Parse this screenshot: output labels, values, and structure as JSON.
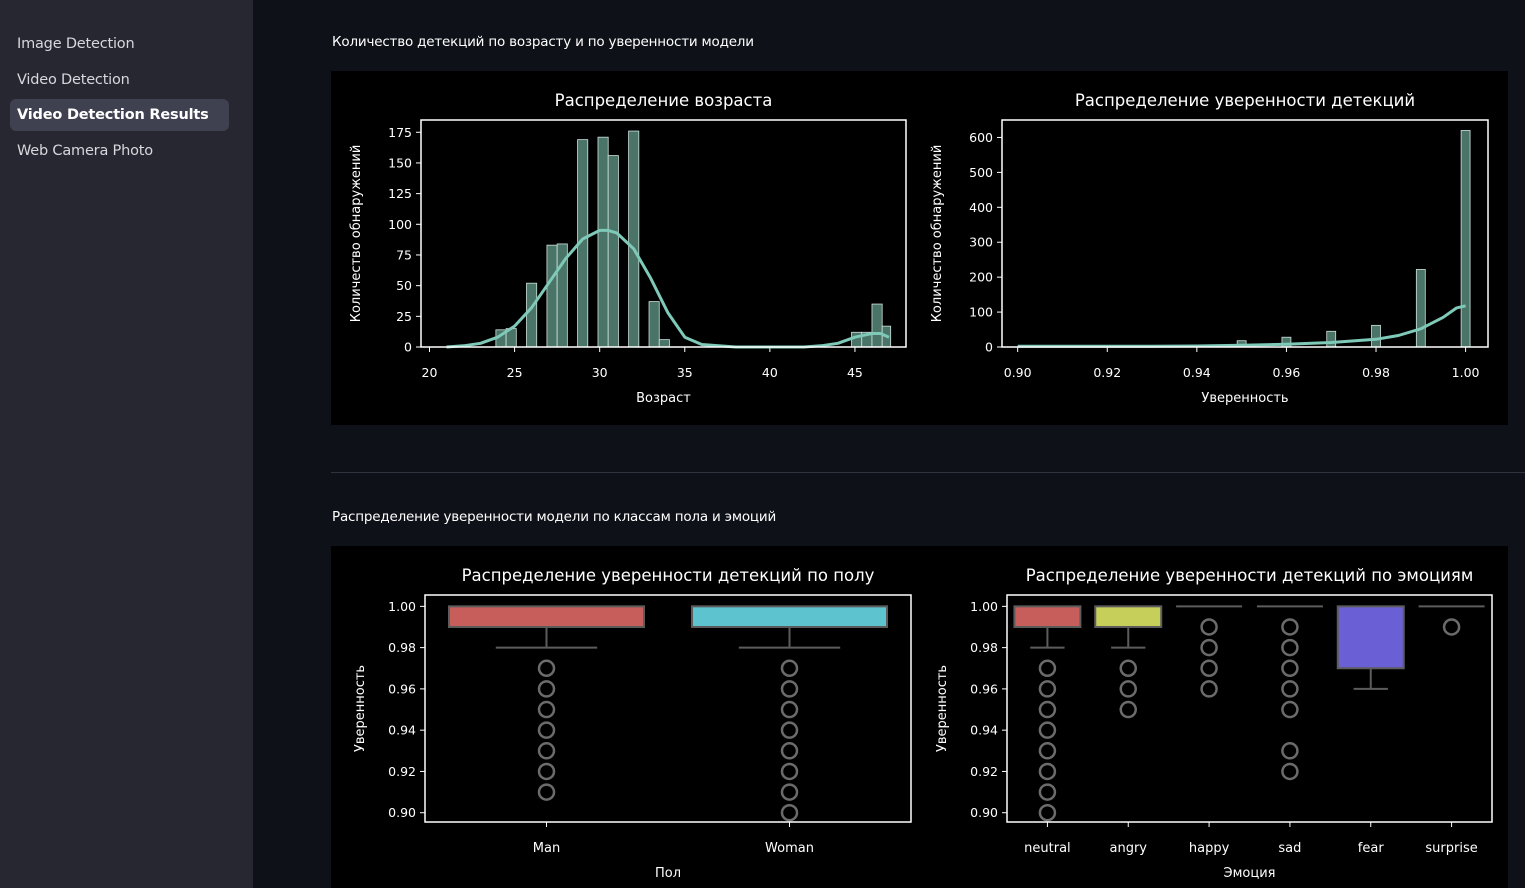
{
  "sidebar": {
    "items": [
      {
        "label": "Image Detection",
        "active": false
      },
      {
        "label": "Video Detection",
        "active": false
      },
      {
        "label": "Video Detection Results",
        "active": true
      },
      {
        "label": "Web Camera Photo",
        "active": false
      }
    ]
  },
  "sections": [
    {
      "title": "Количество детекций по возрасту и по уверенности модели"
    },
    {
      "title": "Распределение уверенности модели по классам пола и эмоций"
    }
  ],
  "colors": {
    "hist_bar": "#4a7468",
    "kde_line": "#7fc9b8",
    "box_man": "#c85e5b",
    "box_woman": "#5cc3cf",
    "box_neutral": "#c85e5b",
    "box_angry": "#c7cf5b",
    "box_fear": "#6b5fd5",
    "whisker": "#5c5c5c",
    "outlier": "#6b6b6b"
  },
  "chart_data": [
    {
      "type": "bar",
      "title": "Распределение возраста",
      "xlabel": "Возраст",
      "ylabel": "Количество обнаружений",
      "xlim": [
        19.5,
        48
      ],
      "ylim": [
        0,
        185
      ],
      "xticks": [
        20,
        25,
        30,
        35,
        40,
        45
      ],
      "yticks": [
        0,
        25,
        50,
        75,
        100,
        125,
        150,
        175
      ],
      "bins": [
        {
          "x0": 23.9,
          "x1": 24.5,
          "value": 14
        },
        {
          "x0": 24.5,
          "x1": 25.1,
          "value": 15
        },
        {
          "x0": 25.7,
          "x1": 26.3,
          "value": 52
        },
        {
          "x0": 26.9,
          "x1": 27.5,
          "value": 83
        },
        {
          "x0": 27.5,
          "x1": 28.1,
          "value": 84
        },
        {
          "x0": 28.7,
          "x1": 29.3,
          "value": 169
        },
        {
          "x0": 29.9,
          "x1": 30.5,
          "value": 171
        },
        {
          "x0": 30.5,
          "x1": 31.1,
          "value": 156
        },
        {
          "x0": 31.7,
          "x1": 32.3,
          "value": 176
        },
        {
          "x0": 32.9,
          "x1": 33.5,
          "value": 37
        },
        {
          "x0": 33.5,
          "x1": 34.1,
          "value": 6
        },
        {
          "x0": 44.8,
          "x1": 45.4,
          "value": 12
        },
        {
          "x0": 45.4,
          "x1": 46.0,
          "value": 12
        },
        {
          "x0": 46.0,
          "x1": 46.6,
          "value": 35
        },
        {
          "x0": 46.6,
          "x1": 47.1,
          "value": 17
        }
      ],
      "kde": {
        "x": [
          21,
          22,
          23,
          24,
          25,
          26,
          27,
          28,
          29,
          30,
          30.5,
          31,
          32,
          33,
          34,
          35,
          36,
          38,
          40,
          42,
          43,
          44,
          45,
          46,
          46.5,
          47
        ],
        "y": [
          0,
          1,
          3,
          8,
          17,
          32,
          52,
          72,
          88,
          95,
          95,
          93,
          80,
          56,
          28,
          8,
          2,
          0,
          0,
          0,
          1,
          3,
          8,
          11,
          11,
          8
        ]
      }
    },
    {
      "type": "bar",
      "title": "Распределение уверенности детекций",
      "xlabel": "Уверенность",
      "ylabel": "Количество обнаружений",
      "xlim": [
        0.8965,
        1.005
      ],
      "ylim": [
        0,
        650
      ],
      "xticks": [
        0.9,
        0.92,
        0.94,
        0.96,
        0.98,
        1.0
      ],
      "xtick_labels": [
        "0.90",
        "0.92",
        "0.94",
        "0.96",
        "0.98",
        "1.00"
      ],
      "yticks": [
        0,
        100,
        200,
        300,
        400,
        500,
        600
      ],
      "bins": [
        {
          "x0": 0.949,
          "x1": 0.951,
          "value": 18
        },
        {
          "x0": 0.959,
          "x1": 0.961,
          "value": 28
        },
        {
          "x0": 0.969,
          "x1": 0.971,
          "value": 45
        },
        {
          "x0": 0.979,
          "x1": 0.981,
          "value": 62
        },
        {
          "x0": 0.989,
          "x1": 0.991,
          "value": 222
        },
        {
          "x0": 0.999,
          "x1": 1.001,
          "value": 620
        }
      ],
      "kde": {
        "x": [
          0.9,
          0.91,
          0.92,
          0.93,
          0.94,
          0.95,
          0.96,
          0.97,
          0.98,
          0.985,
          0.99,
          0.995,
          0.998,
          1.0
        ],
        "y": [
          2,
          2,
          2,
          2,
          3,
          5,
          8,
          13,
          22,
          33,
          52,
          85,
          112,
          118
        ]
      }
    },
    {
      "type": "box",
      "title": "Распределение уверенности детекций по полу",
      "xlabel": "Пол",
      "ylabel": "Уверенность",
      "ylim": [
        0.8955,
        1.0055
      ],
      "yticks": [
        0.9,
        0.92,
        0.94,
        0.96,
        0.98,
        1.0
      ],
      "ytick_labels": [
        "0.90",
        "0.92",
        "0.94",
        "0.96",
        "0.98",
        "1.00"
      ],
      "categories": [
        "Man",
        "Woman"
      ],
      "boxes": [
        {
          "q1": 0.99,
          "median": 1.0,
          "q3": 1.0,
          "whisker_low": 0.98,
          "whisker_high": 1.0,
          "outliers": [
            0.97,
            0.96,
            0.95,
            0.94,
            0.93,
            0.92,
            0.91
          ]
        },
        {
          "q1": 0.99,
          "median": 1.0,
          "q3": 1.0,
          "whisker_low": 0.98,
          "whisker_high": 1.0,
          "outliers": [
            0.97,
            0.96,
            0.95,
            0.94,
            0.93,
            0.92,
            0.91,
            0.9
          ]
        }
      ]
    },
    {
      "type": "box",
      "title": "Распределение уверенности детекций по эмоциям",
      "xlabel": "Эмоция",
      "ylabel": "Уверенность",
      "ylim": [
        0.8955,
        1.0055
      ],
      "yticks": [
        0.9,
        0.92,
        0.94,
        0.96,
        0.98,
        1.0
      ],
      "ytick_labels": [
        "0.90",
        "0.92",
        "0.94",
        "0.96",
        "0.98",
        "1.00"
      ],
      "categories": [
        "neutral",
        "angry",
        "happy",
        "sad",
        "fear",
        "surprise"
      ],
      "boxes": [
        {
          "q1": 0.99,
          "median": 1.0,
          "q3": 1.0,
          "whisker_low": 0.98,
          "whisker_high": 1.0,
          "outliers": [
            0.97,
            0.96,
            0.95,
            0.94,
            0.93,
            0.92,
            0.91,
            0.9
          ]
        },
        {
          "q1": 0.99,
          "median": 1.0,
          "q3": 1.0,
          "whisker_low": 0.98,
          "whisker_high": 1.0,
          "outliers": [
            0.97,
            0.96,
            0.95
          ]
        },
        {
          "q1": 1.0,
          "median": 1.0,
          "q3": 1.0,
          "whisker_low": 1.0,
          "whisker_high": 1.0,
          "outliers": [
            0.99,
            0.98,
            0.97,
            0.96
          ]
        },
        {
          "q1": 1.0,
          "median": 1.0,
          "q3": 1.0,
          "whisker_low": 1.0,
          "whisker_high": 1.0,
          "outliers": [
            0.99,
            0.98,
            0.97,
            0.96,
            0.95,
            0.93,
            0.92
          ]
        },
        {
          "q1": 0.97,
          "median": 1.0,
          "q3": 1.0,
          "whisker_low": 0.96,
          "whisker_high": 1.0,
          "outliers": []
        },
        {
          "q1": 1.0,
          "median": 1.0,
          "q3": 1.0,
          "whisker_low": 1.0,
          "whisker_high": 1.0,
          "outliers": [
            0.99
          ]
        }
      ]
    }
  ]
}
